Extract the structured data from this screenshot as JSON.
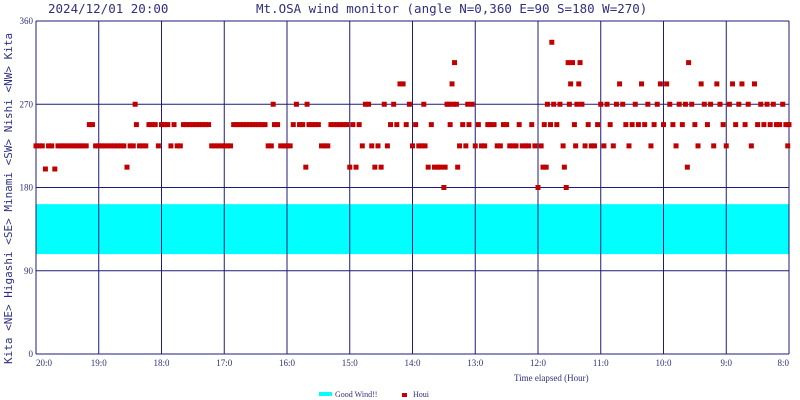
{
  "header": {
    "datetime": "2024/12/01 20:00",
    "title": "Mt.OSA wind monitor (angle N=0,360 E=90 S=180 W=270)"
  },
  "y_axis_label": "Kita  <NE> Higashi  <SE>  Minami  <SW>  Nishi  <NW>  Kita",
  "legend": {
    "good_wind_label": "Good Wind!!",
    "houi_label": "Houi"
  },
  "colors": {
    "grid": "#1c1c7a",
    "good_band": "#00ffff",
    "points": "#c00000",
    "text": "#2f2f7f"
  },
  "chart_data": {
    "type": "scatter",
    "title": "Mt.OSA wind monitor (angle N=0,360 E=90 S=180 W=270)",
    "xlabel": "Time elapsed (Hour)",
    "ylabel": "Kita  <NE> Higashi  <SE>  Minami  <SW>  Nishi  <NW>  Kita",
    "x_tick_labels": [
      "20:0",
      "19:0",
      "18:0",
      "17:0",
      "16:0",
      "15:0",
      "14:0",
      "13:0",
      "12:0",
      "11:0",
      "10:0",
      "9:0",
      "8:0"
    ],
    "x_tick_hours": [
      20,
      19,
      18,
      17,
      16,
      15,
      14,
      13,
      12,
      11,
      10,
      9,
      8
    ],
    "xlim": [
      20,
      8
    ],
    "y_ticks": [
      0,
      90,
      180,
      270,
      360
    ],
    "ylim": [
      0,
      360
    ],
    "good_wind_range": [
      108,
      162
    ],
    "grid": true,
    "legend_position": "bottom-center",
    "series": [
      {
        "name": "Houi",
        "points": [
          [
            20.0,
            225
          ],
          [
            19.95,
            225
          ],
          [
            19.9,
            225
          ],
          [
            19.85,
            200
          ],
          [
            19.8,
            225
          ],
          [
            19.75,
            225
          ],
          [
            19.7,
            200
          ],
          [
            19.65,
            225
          ],
          [
            19.6,
            225
          ],
          [
            19.55,
            225
          ],
          [
            19.5,
            225
          ],
          [
            19.45,
            225
          ],
          [
            19.4,
            225
          ],
          [
            19.35,
            225
          ],
          [
            19.3,
            225
          ],
          [
            19.25,
            225
          ],
          [
            19.2,
            225
          ],
          [
            19.15,
            248
          ],
          [
            19.1,
            248
          ],
          [
            19.05,
            225
          ],
          [
            19.0,
            225
          ],
          [
            18.95,
            225
          ],
          [
            18.9,
            225
          ],
          [
            18.85,
            225
          ],
          [
            18.8,
            225
          ],
          [
            18.75,
            225
          ],
          [
            18.7,
            225
          ],
          [
            18.65,
            225
          ],
          [
            18.6,
            225
          ],
          [
            18.55,
            202
          ],
          [
            18.5,
            225
          ],
          [
            18.45,
            225
          ],
          [
            18.42,
            270
          ],
          [
            18.4,
            248
          ],
          [
            18.35,
            225
          ],
          [
            18.3,
            225
          ],
          [
            18.25,
            225
          ],
          [
            18.2,
            248
          ],
          [
            18.15,
            248
          ],
          [
            18.1,
            248
          ],
          [
            18.05,
            225
          ],
          [
            18.0,
            248
          ],
          [
            17.95,
            248
          ],
          [
            17.9,
            248
          ],
          [
            17.85,
            225
          ],
          [
            17.8,
            248
          ],
          [
            17.75,
            225
          ],
          [
            17.7,
            225
          ],
          [
            17.65,
            248
          ],
          [
            17.6,
            248
          ],
          [
            17.55,
            248
          ],
          [
            17.5,
            248
          ],
          [
            17.45,
            248
          ],
          [
            17.4,
            248
          ],
          [
            17.35,
            248
          ],
          [
            17.3,
            248
          ],
          [
            17.25,
            248
          ],
          [
            17.2,
            225
          ],
          [
            17.15,
            225
          ],
          [
            17.1,
            225
          ],
          [
            17.05,
            225
          ],
          [
            17.0,
            225
          ],
          [
            16.95,
            225
          ],
          [
            16.9,
            225
          ],
          [
            16.85,
            248
          ],
          [
            16.8,
            248
          ],
          [
            16.75,
            248
          ],
          [
            16.7,
            248
          ],
          [
            16.65,
            248
          ],
          [
            16.6,
            248
          ],
          [
            16.55,
            248
          ],
          [
            16.5,
            248
          ],
          [
            16.45,
            248
          ],
          [
            16.4,
            248
          ],
          [
            16.35,
            248
          ],
          [
            16.3,
            225
          ],
          [
            16.25,
            225
          ],
          [
            16.22,
            270
          ],
          [
            16.2,
            248
          ],
          [
            16.15,
            248
          ],
          [
            16.1,
            225
          ],
          [
            16.05,
            225
          ],
          [
            16.0,
            225
          ],
          [
            15.95,
            225
          ],
          [
            15.9,
            248
          ],
          [
            15.85,
            270
          ],
          [
            15.8,
            248
          ],
          [
            15.75,
            248
          ],
          [
            15.7,
            202
          ],
          [
            15.68,
            270
          ],
          [
            15.65,
            248
          ],
          [
            15.6,
            248
          ],
          [
            15.55,
            248
          ],
          [
            15.5,
            248
          ],
          [
            15.45,
            225
          ],
          [
            15.4,
            225
          ],
          [
            15.35,
            225
          ],
          [
            15.3,
            248
          ],
          [
            15.25,
            248
          ],
          [
            15.2,
            248
          ],
          [
            15.15,
            248
          ],
          [
            15.1,
            248
          ],
          [
            15.05,
            248
          ],
          [
            15.0,
            202
          ],
          [
            14.95,
            248
          ],
          [
            14.9,
            202
          ],
          [
            14.85,
            248
          ],
          [
            14.8,
            225
          ],
          [
            14.75,
            270
          ],
          [
            14.7,
            270
          ],
          [
            14.65,
            225
          ],
          [
            14.6,
            202
          ],
          [
            14.55,
            225
          ],
          [
            14.5,
            202
          ],
          [
            14.45,
            270
          ],
          [
            14.4,
            225
          ],
          [
            14.35,
            248
          ],
          [
            14.3,
            270
          ],
          [
            14.25,
            248
          ],
          [
            14.2,
            292
          ],
          [
            14.15,
            292
          ],
          [
            14.1,
            248
          ],
          [
            14.05,
            270
          ],
          [
            14.0,
            225
          ],
          [
            13.95,
            248
          ],
          [
            13.9,
            225
          ],
          [
            13.85,
            225
          ],
          [
            13.82,
            270
          ],
          [
            13.8,
            225
          ],
          [
            13.75,
            202
          ],
          [
            13.7,
            248
          ],
          [
            13.65,
            202
          ],
          [
            13.6,
            202
          ],
          [
            13.55,
            202
          ],
          [
            13.5,
            180
          ],
          [
            13.48,
            202
          ],
          [
            13.45,
            270
          ],
          [
            13.42,
            270
          ],
          [
            13.4,
            248
          ],
          [
            13.37,
            292
          ],
          [
            13.35,
            270
          ],
          [
            13.33,
            315
          ],
          [
            13.3,
            270
          ],
          [
            13.28,
            202
          ],
          [
            13.25,
            225
          ],
          [
            13.2,
            248
          ],
          [
            13.15,
            225
          ],
          [
            13.12,
            270
          ],
          [
            13.1,
            248
          ],
          [
            13.05,
            270
          ],
          [
            13.0,
            225
          ],
          [
            12.95,
            248
          ],
          [
            12.9,
            225
          ],
          [
            12.85,
            225
          ],
          [
            12.8,
            248
          ],
          [
            12.75,
            248
          ],
          [
            12.7,
            248
          ],
          [
            12.65,
            225
          ],
          [
            12.6,
            225
          ],
          [
            12.55,
            248
          ],
          [
            12.5,
            248
          ],
          [
            12.45,
            225
          ],
          [
            12.4,
            225
          ],
          [
            12.35,
            225
          ],
          [
            12.3,
            248
          ],
          [
            12.25,
            225
          ],
          [
            12.2,
            225
          ],
          [
            12.15,
            225
          ],
          [
            12.1,
            248
          ],
          [
            12.05,
            225
          ],
          [
            12.0,
            180
          ],
          [
            11.95,
            225
          ],
          [
            11.92,
            202
          ],
          [
            11.9,
            248
          ],
          [
            11.87,
            202
          ],
          [
            11.85,
            270
          ],
          [
            11.8,
            248
          ],
          [
            11.78,
            337
          ],
          [
            11.75,
            270
          ],
          [
            11.7,
            248
          ],
          [
            11.65,
            270
          ],
          [
            11.6,
            225
          ],
          [
            11.58,
            202
          ],
          [
            11.55,
            180
          ],
          [
            11.52,
            315
          ],
          [
            11.5,
            270
          ],
          [
            11.48,
            292
          ],
          [
            11.45,
            315
          ],
          [
            11.42,
            248
          ],
          [
            11.4,
            225
          ],
          [
            11.38,
            270
          ],
          [
            11.35,
            292
          ],
          [
            11.33,
            315
          ],
          [
            11.3,
            270
          ],
          [
            11.25,
            225
          ],
          [
            11.2,
            248
          ],
          [
            11.15,
            225
          ],
          [
            11.1,
            225
          ],
          [
            11.05,
            248
          ],
          [
            11.0,
            270
          ],
          [
            10.95,
            225
          ],
          [
            10.9,
            270
          ],
          [
            10.85,
            248
          ],
          [
            10.8,
            225
          ],
          [
            10.75,
            270
          ],
          [
            10.7,
            292
          ],
          [
            10.65,
            270
          ],
          [
            10.6,
            248
          ],
          [
            10.55,
            225
          ],
          [
            10.5,
            248
          ],
          [
            10.45,
            270
          ],
          [
            10.4,
            248
          ],
          [
            10.35,
            292
          ],
          [
            10.3,
            248
          ],
          [
            10.25,
            270
          ],
          [
            10.2,
            225
          ],
          [
            10.15,
            248
          ],
          [
            10.1,
            270
          ],
          [
            10.05,
            292
          ],
          [
            10.0,
            248
          ],
          [
            9.95,
            292
          ],
          [
            9.9,
            270
          ],
          [
            9.85,
            248
          ],
          [
            9.8,
            225
          ],
          [
            9.75,
            270
          ],
          [
            9.7,
            248
          ],
          [
            9.65,
            270
          ],
          [
            9.62,
            202
          ],
          [
            9.6,
            315
          ],
          [
            9.55,
            270
          ],
          [
            9.5,
            248
          ],
          [
            9.45,
            225
          ],
          [
            9.4,
            292
          ],
          [
            9.35,
            270
          ],
          [
            9.3,
            248
          ],
          [
            9.25,
            270
          ],
          [
            9.2,
            225
          ],
          [
            9.15,
            292
          ],
          [
            9.1,
            270
          ],
          [
            9.05,
            248
          ],
          [
            9.0,
            225
          ],
          [
            8.95,
            270
          ],
          [
            8.9,
            292
          ],
          [
            8.85,
            248
          ],
          [
            8.8,
            270
          ],
          [
            8.75,
            292
          ],
          [
            8.7,
            248
          ],
          [
            8.65,
            270
          ],
          [
            8.6,
            225
          ],
          [
            8.55,
            292
          ],
          [
            8.5,
            248
          ],
          [
            8.45,
            270
          ],
          [
            8.4,
            248
          ],
          [
            8.35,
            270
          ],
          [
            8.3,
            248
          ],
          [
            8.25,
            270
          ],
          [
            8.2,
            248
          ],
          [
            8.15,
            248
          ],
          [
            8.1,
            270
          ],
          [
            8.05,
            248
          ],
          [
            8.02,
            225
          ],
          [
            8.0,
            248
          ]
        ]
      }
    ]
  }
}
